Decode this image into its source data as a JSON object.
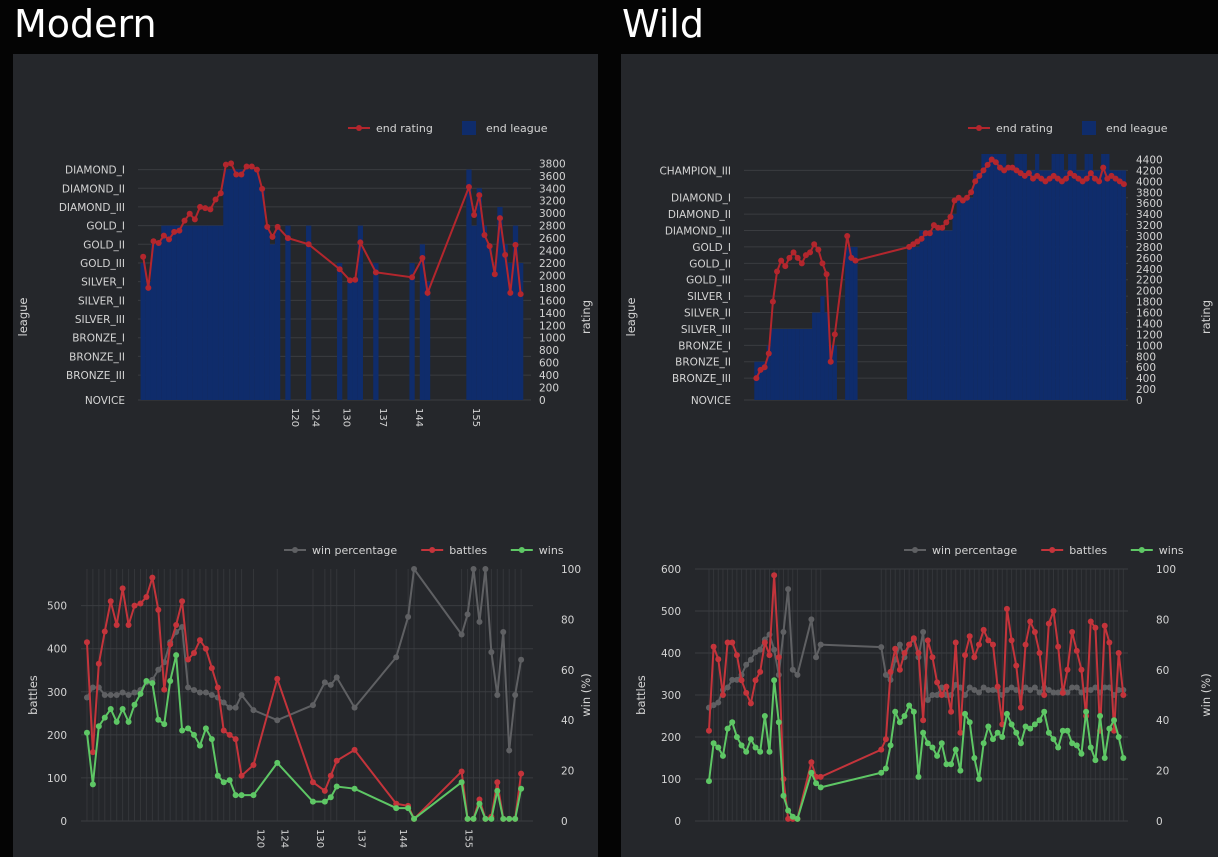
{
  "columns": [
    {
      "title": "Modern"
    },
    {
      "title": "Wild"
    }
  ],
  "colors": {
    "background": "#040404",
    "panel": "#25272b",
    "end_rating": "#b3262d",
    "end_league": "#0f2c6b",
    "win_percentage": "#5f6063",
    "battles": "#c4343b",
    "wins": "#5ec765",
    "text": "#d4d4d4"
  },
  "chart_data": [
    {
      "id": "modern-rating",
      "type": "bar",
      "mode": "bar+line",
      "legend": [
        "end rating",
        "end league"
      ],
      "y_left_label": "league",
      "y_right_label": "rating",
      "y_right_ticks": [
        0,
        200,
        400,
        600,
        800,
        1000,
        1200,
        1400,
        1600,
        1800,
        2000,
        2200,
        2400,
        2600,
        2800,
        3000,
        3200,
        3400,
        3600,
        3800
      ],
      "y_right_range": [
        0,
        3950
      ],
      "league_ticks": [
        {
          "label": "NOVICE",
          "rating": 0
        },
        {
          "label": "BRONZE_III",
          "rating": 400
        },
        {
          "label": "BRONZE_II",
          "rating": 700
        },
        {
          "label": "BRONZE_I",
          "rating": 1000
        },
        {
          "label": "SILVER_III",
          "rating": 1300
        },
        {
          "label": "SILVER_II",
          "rating": 1600
        },
        {
          "label": "SILVER_I",
          "rating": 1900
        },
        {
          "label": "GOLD_III",
          "rating": 2200
        },
        {
          "label": "GOLD_II",
          "rating": 2500
        },
        {
          "label": "GOLD_I",
          "rating": 2800
        },
        {
          "label": "DIAMOND_III",
          "rating": 3100
        },
        {
          "label": "DIAMOND_II",
          "rating": 3400
        },
        {
          "label": "DIAMOND_I",
          "rating": 3700
        }
      ],
      "x_range": [
        91,
        167
      ],
      "x_tick_labels": [
        "120",
        "124",
        "130",
        "137",
        "144",
        "155"
      ],
      "x": [
        92,
        93,
        94,
        95,
        96,
        97,
        98,
        99,
        100,
        101,
        102,
        103,
        104,
        105,
        106,
        107,
        108,
        109,
        110,
        111,
        112,
        113,
        114,
        115,
        116,
        117,
        118,
        120,
        124,
        130,
        132,
        133,
        134,
        137,
        144,
        146,
        147,
        155,
        156,
        157,
        158,
        159,
        160,
        161,
        162,
        163,
        164,
        165
      ],
      "end_rating": [
        2300,
        1800,
        2550,
        2520,
        2640,
        2580,
        2700,
        2720,
        2880,
        2990,
        2900,
        3100,
        3080,
        3060,
        3220,
        3320,
        3780,
        3800,
        3620,
        3620,
        3750,
        3750,
        3700,
        3390,
        2780,
        2620,
        2780,
        2600,
        2500,
        2100,
        1920,
        1930,
        2530,
        2050,
        1970,
        2280,
        1720,
        3420,
        2970,
        3290,
        2650,
        2470,
        2020,
        2920,
        2330,
        1720,
        2490,
        1700
      ],
      "end_league": [
        2200,
        1900,
        2500,
        2500,
        2800,
        2800,
        2800,
        2800,
        2800,
        2800,
        2800,
        2800,
        2800,
        2800,
        2800,
        2800,
        3700,
        3700,
        3700,
        3700,
        3700,
        3700,
        3700,
        3400,
        2800,
        2500,
        2800,
        2800,
        2800,
        2200,
        1900,
        1900,
        2800,
        2200,
        2200,
        2500,
        1900,
        3700,
        2800,
        3400,
        2800,
        2500,
        2200,
        3100,
        2500,
        2200,
        2800,
        2200
      ]
    },
    {
      "id": "wild-rating",
      "type": "bar",
      "mode": "bar+line",
      "legend": [
        "end rating",
        "end league"
      ],
      "y_left_label": "league",
      "y_right_label": "rating",
      "y_right_ticks": [
        0,
        200,
        400,
        600,
        800,
        1000,
        1200,
        1400,
        1600,
        1800,
        2000,
        2200,
        2400,
        2600,
        2800,
        3000,
        3200,
        3400,
        3600,
        3800,
        4000,
        4200,
        4400
      ],
      "y_right_range": [
        0,
        4500
      ],
      "league_ticks": [
        {
          "label": "NOVICE",
          "rating": 0
        },
        {
          "label": "BRONZE_III",
          "rating": 400
        },
        {
          "label": "BRONZE_II",
          "rating": 700
        },
        {
          "label": "BRONZE_I",
          "rating": 1000
        },
        {
          "label": "SILVER_III",
          "rating": 1300
        },
        {
          "label": "SILVER_II",
          "rating": 1600
        },
        {
          "label": "SILVER_I",
          "rating": 1900
        },
        {
          "label": "GOLD_III",
          "rating": 2200
        },
        {
          "label": "GOLD_II",
          "rating": 2500
        },
        {
          "label": "GOLD_I",
          "rating": 2800
        },
        {
          "label": "DIAMOND_III",
          "rating": 3100
        },
        {
          "label": "DIAMOND_II",
          "rating": 3400
        },
        {
          "label": "DIAMOND_I",
          "rating": 3700
        },
        {
          "label": "CHAMPION_III",
          "rating": 4200
        }
      ],
      "x_range": [
        70,
        163
      ],
      "x_tick_labels": [],
      "x": [
        73,
        74,
        75,
        76,
        77,
        78,
        79,
        80,
        81,
        82,
        83,
        84,
        85,
        86,
        87,
        88,
        89,
        90,
        91,
        92,
        95,
        96,
        97,
        110,
        111,
        112,
        113,
        114,
        115,
        116,
        117,
        118,
        119,
        120,
        121,
        122,
        123,
        124,
        125,
        126,
        127,
        128,
        129,
        130,
        131,
        132,
        133,
        134,
        135,
        136,
        137,
        138,
        139,
        140,
        141,
        142,
        143,
        144,
        145,
        146,
        147,
        148,
        149,
        150,
        151,
        152,
        153,
        154,
        155,
        156,
        157,
        158,
        159,
        160,
        161,
        162
      ],
      "end_rating": [
        400,
        550,
        600,
        850,
        1800,
        2350,
        2550,
        2450,
        2600,
        2700,
        2600,
        2500,
        2650,
        2700,
        2850,
        2750,
        2500,
        2300,
        700,
        1200,
        3000,
        2600,
        2550,
        2800,
        2850,
        2900,
        2950,
        3050,
        3050,
        3200,
        3150,
        3150,
        3250,
        3350,
        3650,
        3700,
        3650,
        3700,
        3800,
        4000,
        4100,
        4200,
        4300,
        4400,
        4350,
        4250,
        4200,
        4250,
        4250,
        4200,
        4150,
        4100,
        4150,
        4050,
        4100,
        4050,
        4000,
        4050,
        4100,
        4050,
        4000,
        4050,
        4150,
        4100,
        4050,
        4000,
        4050,
        4150,
        4050,
        4000,
        4250,
        4050,
        4100,
        4050,
        4000,
        3950
      ],
      "end_league": [
        700,
        700,
        700,
        1000,
        1300,
        1300,
        1300,
        1300,
        1300,
        1300,
        1300,
        1300,
        1300,
        1300,
        1600,
        1600,
        1900,
        1600,
        1000,
        1000,
        2800,
        2800,
        2800,
        2800,
        2800,
        2800,
        3100,
        3100,
        3100,
        3100,
        3100,
        3100,
        3100,
        3100,
        3400,
        3700,
        3700,
        3700,
        3700,
        4200,
        4200,
        4500,
        4500,
        4500,
        4500,
        4500,
        4500,
        4200,
        4200,
        4500,
        4500,
        4500,
        4200,
        4200,
        4500,
        4200,
        4200,
        4200,
        4500,
        4500,
        4500,
        4200,
        4500,
        4500,
        4200,
        4200,
        4500,
        4500,
        4200,
        4200,
        4500,
        4500,
        4200,
        4200,
        4200,
        4200
      ]
    },
    {
      "id": "modern-battles",
      "type": "line",
      "legend": [
        "win percentage",
        "battles",
        "wins"
      ],
      "y_left_label": "battles",
      "y_right_label": "win (%)",
      "y_left_ticks": [
        0,
        100,
        200,
        300,
        400,
        500
      ],
      "y_left_range": [
        0,
        585
      ],
      "y_right_ticks": [
        0,
        20,
        40,
        60,
        80,
        100
      ],
      "y_right_range": [
        0,
        100
      ],
      "x_range": [
        91,
        167
      ],
      "x_tick_labels": [
        "120",
        "124",
        "130",
        "137",
        "144",
        "155"
      ],
      "x": [
        92,
        93,
        94,
        95,
        96,
        97,
        98,
        99,
        100,
        101,
        102,
        103,
        104,
        105,
        106,
        107,
        108,
        109,
        110,
        111,
        112,
        113,
        114,
        115,
        116,
        117,
        118,
        120,
        124,
        130,
        132,
        133,
        134,
        137,
        144,
        146,
        147,
        155,
        156,
        157,
        158,
        159,
        160,
        161,
        162,
        163,
        164,
        165
      ],
      "battles": [
        415,
        160,
        365,
        440,
        510,
        455,
        540,
        455,
        500,
        505,
        520,
        565,
        490,
        305,
        410,
        455,
        510,
        375,
        390,
        420,
        400,
        355,
        310,
        210,
        200,
        190,
        105,
        130,
        330,
        90,
        70,
        105,
        140,
        165,
        40,
        35,
        5,
        115,
        5,
        5,
        50,
        5,
        10,
        90,
        5,
        5,
        5,
        110
      ],
      "wins": [
        205,
        85,
        220,
        240,
        260,
        230,
        260,
        230,
        270,
        295,
        325,
        320,
        235,
        225,
        325,
        385,
        210,
        215,
        200,
        175,
        215,
        190,
        105,
        90,
        95,
        60,
        60,
        60,
        135,
        45,
        45,
        55,
        80,
        75,
        30,
        30,
        5,
        90,
        5,
        5,
        40,
        5,
        5,
        70,
        5,
        5,
        5,
        75
      ],
      "win_percentage": [
        49,
        53,
        53,
        50,
        50,
        50,
        51,
        50,
        51,
        52,
        55,
        56,
        60,
        63,
        71,
        75,
        77,
        53,
        52,
        51,
        51,
        50,
        49,
        47,
        45,
        45,
        50,
        44,
        40,
        46,
        55,
        54,
        57,
        45,
        65,
        81,
        100,
        74,
        82,
        100,
        79,
        100,
        67,
        50,
        75,
        28,
        50,
        64
      ]
    },
    {
      "id": "wild-battles",
      "type": "line",
      "legend": [
        "win percentage",
        "battles",
        "wins"
      ],
      "y_left_label": "battles",
      "y_right_label": "win (%)",
      "y_left_ticks": [
        0,
        100,
        200,
        300,
        400,
        500,
        600
      ],
      "y_left_range": [
        0,
        600
      ],
      "y_right_ticks": [
        0,
        20,
        40,
        60,
        80,
        100
      ],
      "y_right_range": [
        0,
        100
      ],
      "x_range": [
        70,
        163
      ],
      "x_tick_labels": [],
      "x": [
        73,
        74,
        75,
        76,
        77,
        78,
        79,
        80,
        81,
        82,
        83,
        84,
        85,
        86,
        87,
        88,
        89,
        90,
        91,
        92,
        95,
        96,
        97,
        110,
        111,
        112,
        113,
        114,
        115,
        116,
        117,
        118,
        119,
        120,
        121,
        122,
        123,
        124,
        125,
        126,
        127,
        128,
        129,
        130,
        131,
        132,
        133,
        134,
        135,
        136,
        137,
        138,
        139,
        140,
        141,
        142,
        143,
        144,
        145,
        146,
        147,
        148,
        149,
        150,
        151,
        152,
        153,
        154,
        155,
        156,
        157,
        158,
        159,
        160,
        161,
        162
      ],
      "battles": [
        215,
        415,
        385,
        300,
        425,
        425,
        395,
        335,
        305,
        280,
        335,
        355,
        425,
        395,
        585,
        390,
        100,
        5,
        5,
        5,
        140,
        105,
        105,
        170,
        195,
        355,
        410,
        360,
        400,
        420,
        435,
        400,
        240,
        430,
        390,
        330,
        300,
        320,
        260,
        425,
        210,
        395,
        440,
        390,
        420,
        455,
        430,
        420,
        320,
        230,
        505,
        430,
        370,
        270,
        420,
        475,
        450,
        400,
        300,
        470,
        500,
        415,
        305,
        360,
        450,
        405,
        360,
        250,
        475,
        460,
        215,
        465,
        425,
        215,
        400,
        300
      ],
      "wins": [
        95,
        185,
        175,
        155,
        220,
        235,
        200,
        180,
        165,
        195,
        175,
        165,
        250,
        165,
        335,
        235,
        60,
        25,
        10,
        5,
        115,
        90,
        80,
        115,
        125,
        180,
        260,
        235,
        250,
        275,
        260,
        105,
        210,
        185,
        175,
        155,
        185,
        135,
        135,
        170,
        120,
        255,
        235,
        150,
        100,
        185,
        225,
        195,
        210,
        200,
        255,
        230,
        210,
        185,
        225,
        220,
        230,
        240,
        260,
        210,
        195,
        175,
        215,
        215,
        185,
        180,
        160,
        260,
        175,
        145,
        250,
        150,
        220,
        240,
        200,
        150
      ],
      "win_percentage": [
        45,
        46,
        47,
        52,
        53,
        56,
        56,
        58,
        62,
        64,
        67,
        68,
        72,
        74,
        68,
        58,
        75,
        92,
        60,
        58,
        80,
        65,
        70,
        69,
        58,
        56,
        64,
        70,
        65,
        70,
        72,
        65,
        75,
        48,
        50,
        50,
        53,
        50,
        50,
        54,
        53,
        50,
        53,
        52,
        51,
        53,
        52,
        52,
        52,
        50,
        52,
        53,
        52,
        51,
        53,
        52,
        53,
        51,
        53,
        52,
        51,
        51,
        52,
        51,
        53,
        53,
        51,
        52,
        52,
        53,
        51,
        53,
        53,
        50,
        52,
        52
      ]
    }
  ]
}
